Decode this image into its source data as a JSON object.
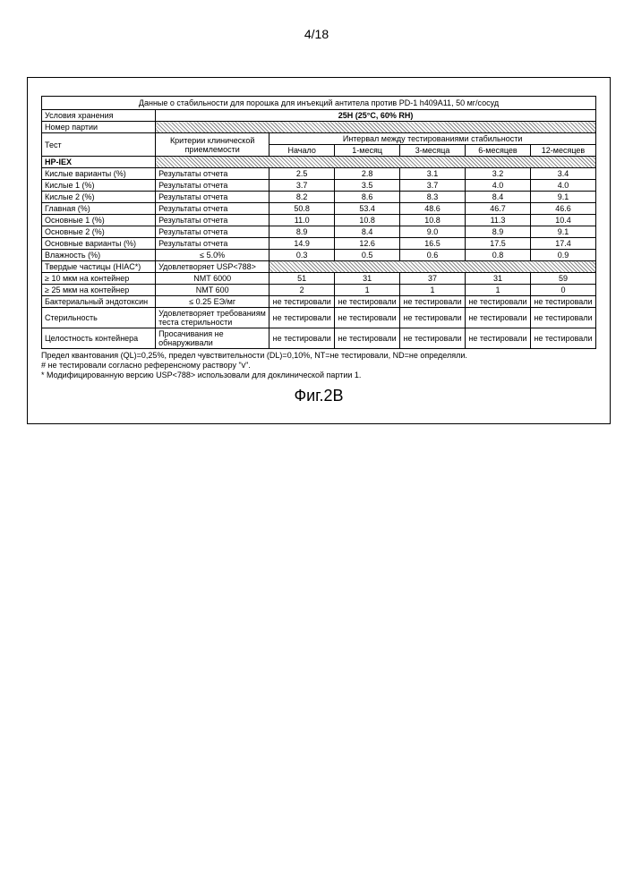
{
  "page_number": "4/18",
  "figure_caption": "Фиг.2B",
  "table": {
    "title": "Данные о стабильности для порошка для инъекций антитела против PD-1 h409A11, 50 мг/сосуд",
    "storage_label": "Условия хранения",
    "storage_value": "25H (25°C, 60% RH)",
    "batch_label": "Номер партии",
    "interval_header": "Интервал между тестированиями стабильности",
    "test_label": "Тест",
    "criteria_label": "Критерии клинической приемлемости",
    "timepoints": [
      "Начало",
      "1-месяц",
      "3-месяца",
      "6-месяцев",
      "12-месяцев"
    ],
    "hp_iex_label": "HP-IEX",
    "rows": [
      {
        "label": "Кислые варианты (%)",
        "crit": "Результаты отчета",
        "vals": [
          "2.5",
          "2.8",
          "3.1",
          "3.2",
          "3.4"
        ]
      },
      {
        "label": "Кислые 1 (%)",
        "crit": "Результаты отчета",
        "vals": [
          "3.7",
          "3.5",
          "3.7",
          "4.0",
          "4.0"
        ]
      },
      {
        "label": "Кислые 2 (%)",
        "crit": "Результаты отчета",
        "vals": [
          "8.2",
          "8.6",
          "8.3",
          "8.4",
          "9.1"
        ]
      },
      {
        "label": "Главная (%)",
        "crit": "Результаты отчета",
        "vals": [
          "50.8",
          "53.4",
          "48.6",
          "46.7",
          "46.6"
        ]
      },
      {
        "label": "Основные 1 (%)",
        "crit": "Результаты отчета",
        "vals": [
          "11.0",
          "10.8",
          "10.8",
          "11.3",
          "10.4"
        ]
      },
      {
        "label": "Основные 2 (%)",
        "crit": "Результаты отчета",
        "vals": [
          "8.9",
          "8.4",
          "9.0",
          "8.9",
          "9.1"
        ]
      },
      {
        "label": "Основные варианты (%)",
        "crit": "Результаты отчета",
        "vals": [
          "14.9",
          "12.6",
          "16.5",
          "17.5",
          "17.4"
        ]
      },
      {
        "label": "Влажность (%)",
        "crit": "≤ 5.0%",
        "vals": [
          "0.3",
          "0.5",
          "0.6",
          "0.8",
          "0.9"
        ]
      }
    ],
    "particles_label": "Твердые частицы (HIAC*)",
    "particles_crit": "Удовлетворяет USP<788>",
    "ge10_label": "≥ 10 мкм на контейнер",
    "ge10_crit": "NMT 6000",
    "ge10_vals": [
      "51",
      "31",
      "37",
      "31",
      "59"
    ],
    "ge25_label": "≥ 25 мкм на контейнер",
    "ge25_crit": "NMT 600",
    "ge25_vals": [
      "2",
      "1",
      "1",
      "1",
      "0"
    ],
    "endotoxin_label": "Бактериальный эндотоксин",
    "endotoxin_crit": "≤ 0.25 EЭ/мг",
    "sterility_label": "Стерильность",
    "sterility_crit": "Удовлетворяет требованиям теста стерильности",
    "integrity_label": "Целостность контейнера",
    "integrity_crit": "Просачивания не обнаруживали",
    "nt": "не тестировали"
  },
  "footnotes": {
    "l1": "Предел квантования (QL)=0,25%, предел чувствительности (DL)=0,10%, NT=не тестировали, ND=не определяли.",
    "l2": "# не тестировали согласно референсному раствору \"v\".",
    "l3": "* Модифицированную версию USP<788> использовали для доклинической партии 1."
  }
}
